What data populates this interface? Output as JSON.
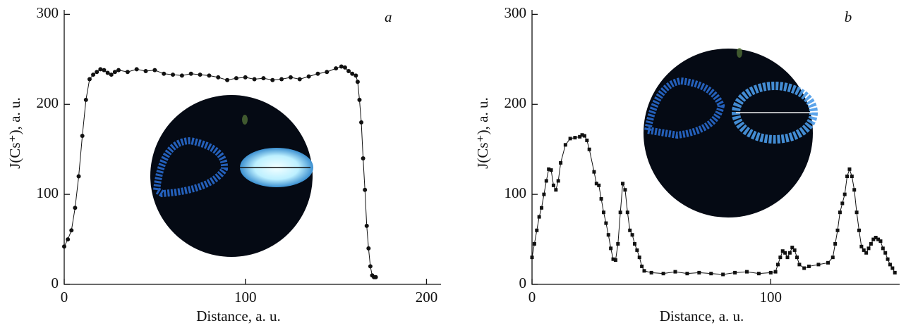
{
  "chart_data": [
    {
      "type": "line",
      "marker": "circle",
      "color": "#111111",
      "panel_label": "a",
      "x_label": "Distance, a. u.",
      "y_label": "J(Cs⁺), a. u.",
      "xlim": [
        0,
        208
      ],
      "ylim": [
        0,
        305
      ],
      "xticks": [
        0,
        100,
        200
      ],
      "yticks": [
        0,
        100,
        200,
        300
      ],
      "x": [
        0,
        2,
        4,
        6,
        8,
        10,
        12,
        14,
        16,
        18,
        20,
        22,
        24,
        26,
        28,
        30,
        35,
        40,
        45,
        50,
        55,
        60,
        65,
        70,
        75,
        80,
        85,
        90,
        95,
        100,
        105,
        110,
        115,
        120,
        125,
        130,
        135,
        140,
        145,
        150,
        153,
        155,
        157,
        159,
        161,
        162,
        163,
        164,
        165,
        166,
        167,
        168,
        169,
        170,
        171,
        172
      ],
      "values": [
        42,
        50,
        60,
        85,
        120,
        165,
        205,
        228,
        233,
        236,
        239,
        238,
        235,
        233,
        236,
        238,
        236,
        239,
        237,
        238,
        234,
        233,
        232,
        234,
        233,
        232,
        230,
        227,
        229,
        230,
        228,
        229,
        227,
        228,
        230,
        228,
        231,
        234,
        236,
        240,
        242,
        241,
        237,
        234,
        232,
        225,
        205,
        180,
        140,
        105,
        65,
        40,
        20,
        10,
        8,
        8
      ]
    },
    {
      "type": "line",
      "marker": "square",
      "color": "#111111",
      "panel_label": "b",
      "x_label": "Distance, a. u.",
      "y_label": "J(Cs⁺), a. u.",
      "xlim": [
        0,
        154
      ],
      "ylim": [
        0,
        305
      ],
      "xticks": [
        0,
        100
      ],
      "yticks": [
        0,
        100,
        200,
        300
      ],
      "x": [
        0,
        1,
        2,
        3,
        4,
        5,
        6,
        7,
        8,
        9,
        10,
        11,
        12,
        14,
        16,
        18,
        20,
        21,
        22,
        23,
        24,
        26,
        27,
        28,
        29,
        30,
        31,
        32,
        33,
        34,
        35,
        36,
        37,
        38,
        39,
        40,
        41,
        42,
        43,
        44,
        45,
        46,
        47,
        50,
        55,
        60,
        65,
        70,
        75,
        80,
        85,
        90,
        95,
        100,
        102,
        103,
        104,
        105,
        106,
        107,
        108,
        109,
        110,
        111,
        112,
        114,
        116,
        120,
        124,
        126,
        127,
        128,
        129,
        130,
        131,
        132,
        133,
        134,
        135,
        136,
        137,
        138,
        139,
        140,
        141,
        142,
        143,
        144,
        145,
        146,
        147,
        148,
        149,
        150,
        151,
        152
      ],
      "values": [
        30,
        45,
        60,
        75,
        85,
        100,
        115,
        128,
        127,
        110,
        105,
        115,
        135,
        155,
        162,
        163,
        164,
        166,
        165,
        160,
        150,
        125,
        112,
        110,
        95,
        80,
        68,
        55,
        40,
        28,
        27,
        45,
        80,
        112,
        105,
        80,
        60,
        55,
        45,
        38,
        30,
        20,
        15,
        13,
        12,
        14,
        12,
        13,
        12,
        11,
        13,
        14,
        12,
        13,
        14,
        22,
        30,
        37,
        35,
        30,
        35,
        41,
        38,
        30,
        22,
        18,
        20,
        22,
        24,
        30,
        45,
        60,
        80,
        90,
        100,
        120,
        128,
        120,
        105,
        80,
        60,
        42,
        38,
        35,
        40,
        45,
        50,
        52,
        50,
        48,
        40,
        35,
        28,
        22,
        18,
        13
      ]
    }
  ]
}
